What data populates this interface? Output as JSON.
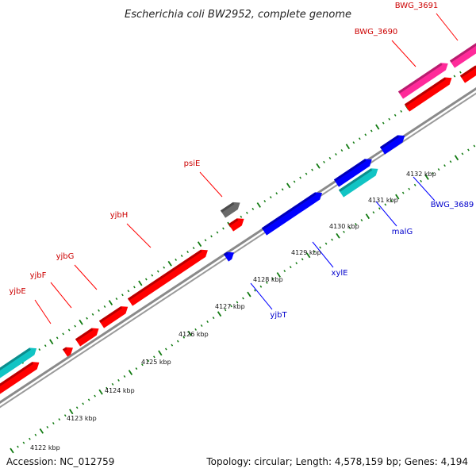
{
  "title": "Escherichia coli BW2952, complete genome",
  "footer": {
    "accession": "Accession: NC_012759",
    "summary": "Topology: circular; Length: 4,578,159 bp; Genes: 4,194"
  },
  "colors": {
    "forward_gene": "#ff0000",
    "reverse_gene": "#0000ff",
    "pink_gene": "#ff2a9a",
    "cyan_gene": "#11c4c4",
    "gray_gene": "#6a6a6a",
    "backbone": "#8a8a8a",
    "ticks": "#117a11",
    "forward_label": "#cc0000",
    "reverse_label": "#0000cc"
  },
  "scale_labels": [
    "4122 kbp",
    "4123 kbp",
    "4124 kbp",
    "4125 kbp",
    "4126 kbp",
    "4127 kbp",
    "4128 kbp",
    "4129 kbp",
    "4130 kbp",
    "4131 kbp",
    "4132 kbp"
  ],
  "gene_labels": {
    "forward": [
      "yjbE",
      "yjbF",
      "yjbG",
      "yjbH",
      "psiE",
      "BWG_3690",
      "BWG_3691"
    ],
    "reverse": [
      "yjbT",
      "xylE",
      "malG",
      "BWG_3689"
    ]
  }
}
